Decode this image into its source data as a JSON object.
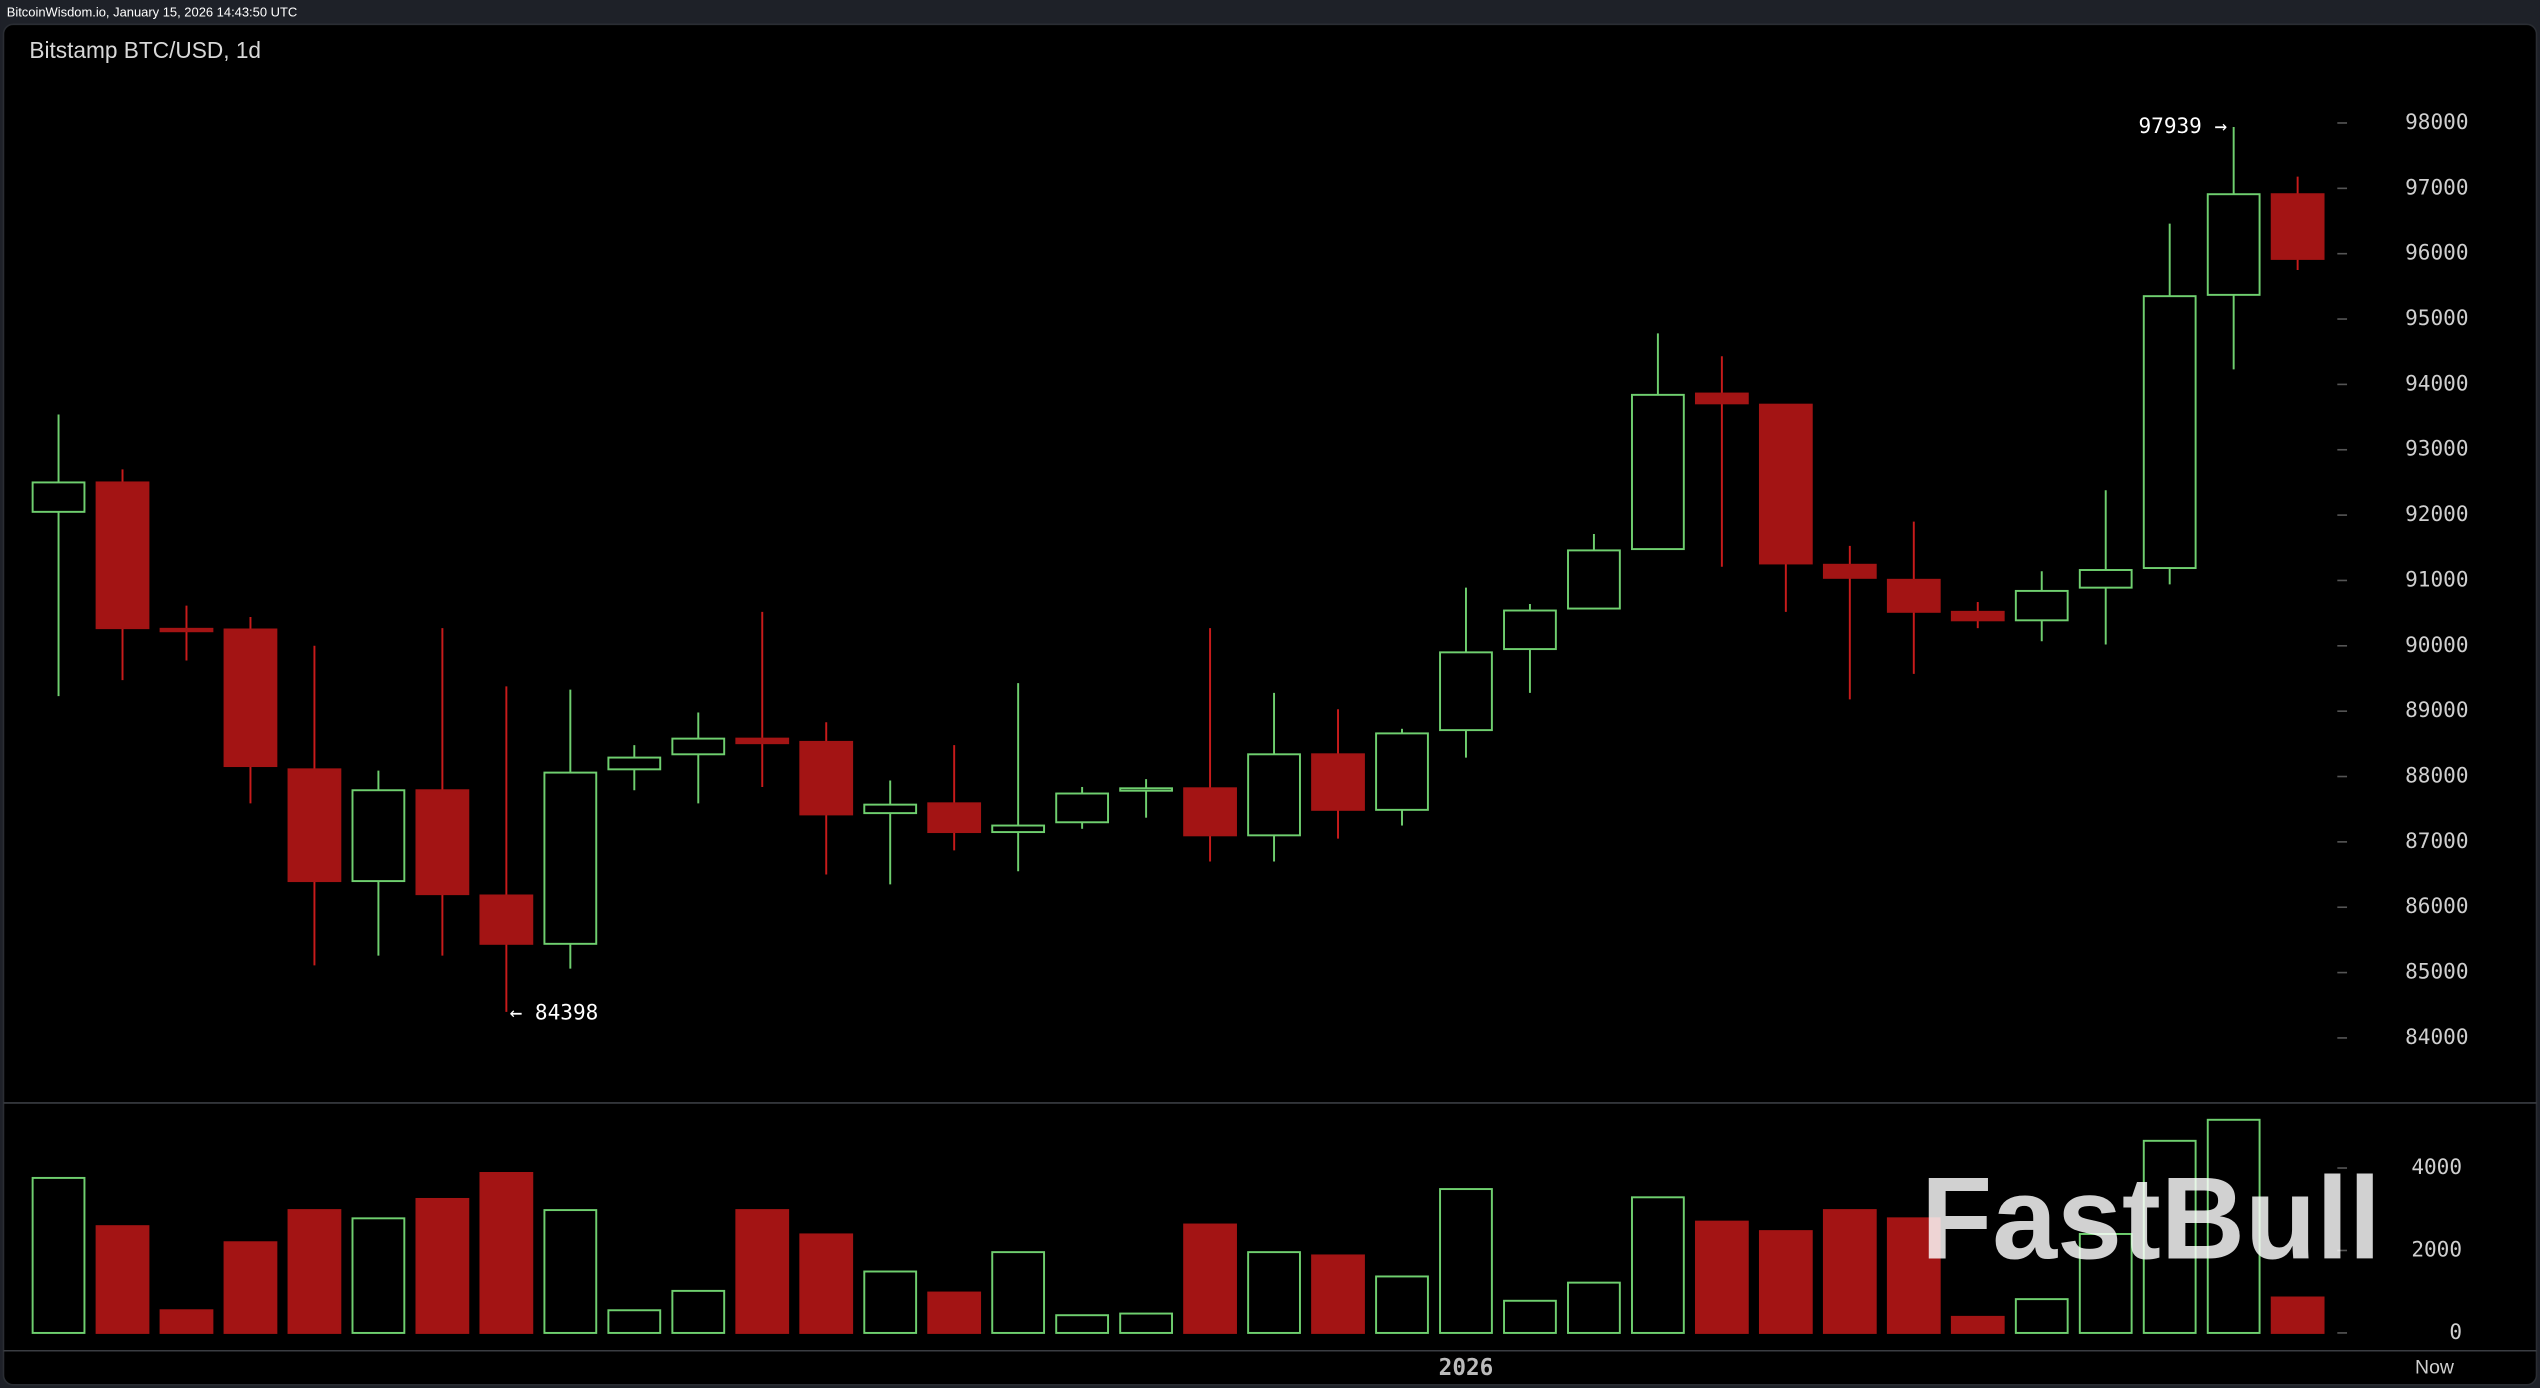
{
  "chart_data": {
    "type": "candlestick",
    "header": "BitcoinWisdom.io, January 15, 2026 14:43:50 UTC",
    "title": "Bitstamp BTC/USD, 1d",
    "categories": [
      null,
      null,
      null,
      null,
      null,
      null,
      null,
      null,
      null,
      null,
      null,
      null,
      null,
      null,
      null,
      null,
      null,
      null,
      null,
      null,
      null,
      null,
      "2026",
      null,
      null,
      null,
      null,
      null,
      null,
      null,
      null,
      null,
      null,
      null,
      null,
      null
    ],
    "end_label": "Now",
    "open": [
      92050,
      92500,
      90260,
      90250,
      88110,
      86400,
      87790,
      86180,
      85440,
      88110,
      88340,
      88580,
      88530,
      87440,
      87590,
      87150,
      87300,
      87790,
      87820,
      87100,
      88340,
      87490,
      88710,
      89950,
      90570,
      91480,
      93860,
      93690,
      91240,
      91010,
      90520,
      90390,
      90890,
      91190,
      95370,
      96910
    ],
    "high": [
      93540,
      92700,
      90615,
      90440,
      90000,
      88090,
      90270,
      89380,
      89330,
      88480,
      88980,
      90520,
      88830,
      87940,
      88480,
      89430,
      87840,
      87960,
      90270,
      89280,
      89030,
      88730,
      90890,
      90640,
      91710,
      94780,
      94430,
      93700,
      91530,
      91900,
      90670,
      91140,
      92380,
      96460,
      97939,
      97180
    ],
    "low": [
      89230,
      89475,
      89775,
      87590,
      85110,
      85260,
      85260,
      84398,
      85060,
      87790,
      87590,
      87840,
      86500,
      86350,
      86870,
      86550,
      87200,
      87370,
      86700,
      86700,
      87050,
      87250,
      88290,
      89280,
      90570,
      91480,
      91210,
      90520,
      89180,
      89570,
      90270,
      90070,
      90020,
      90940,
      94230,
      95750
    ],
    "close": [
      92500,
      90270,
      90250,
      88160,
      86400,
      87790,
      86200,
      85440,
      88060,
      88290,
      88580,
      88510,
      87420,
      87570,
      87150,
      87250,
      87740,
      87820,
      87100,
      88340,
      87490,
      88660,
      89900,
      90540,
      91460,
      93840,
      93710,
      91260,
      91040,
      90520,
      90390,
      90840,
      91160,
      95350,
      96910,
      95920
    ],
    "volume": [
      3760,
      2590,
      550,
      2200,
      2980,
      2780,
      3250,
      3880,
      2980,
      550,
      1020,
      2980,
      2390,
      1490,
      980,
      1960,
      430,
      470,
      2630,
      1960,
      1880,
      1370,
      3490,
      780,
      1220,
      3290,
      2700,
      2470,
      2980,
      2780,
      390,
      820,
      2400,
      4660,
      5170,
      860
    ],
    "up_color": "#6fcf6f",
    "down_color": "#a31414",
    "ylim": [
      83030,
      99510
    ],
    "yticks": [
      84000,
      85000,
      86000,
      87000,
      88000,
      89000,
      90000,
      91000,
      92000,
      93000,
      94000,
      95000,
      96000,
      97000,
      98000
    ],
    "volume_ylim": [
      0,
      5500
    ],
    "volume_yticks": [
      0,
      2000,
      4000
    ],
    "annotations": {
      "high": "97939 →",
      "low": "← 84398"
    },
    "watermark": "FastBull"
  }
}
